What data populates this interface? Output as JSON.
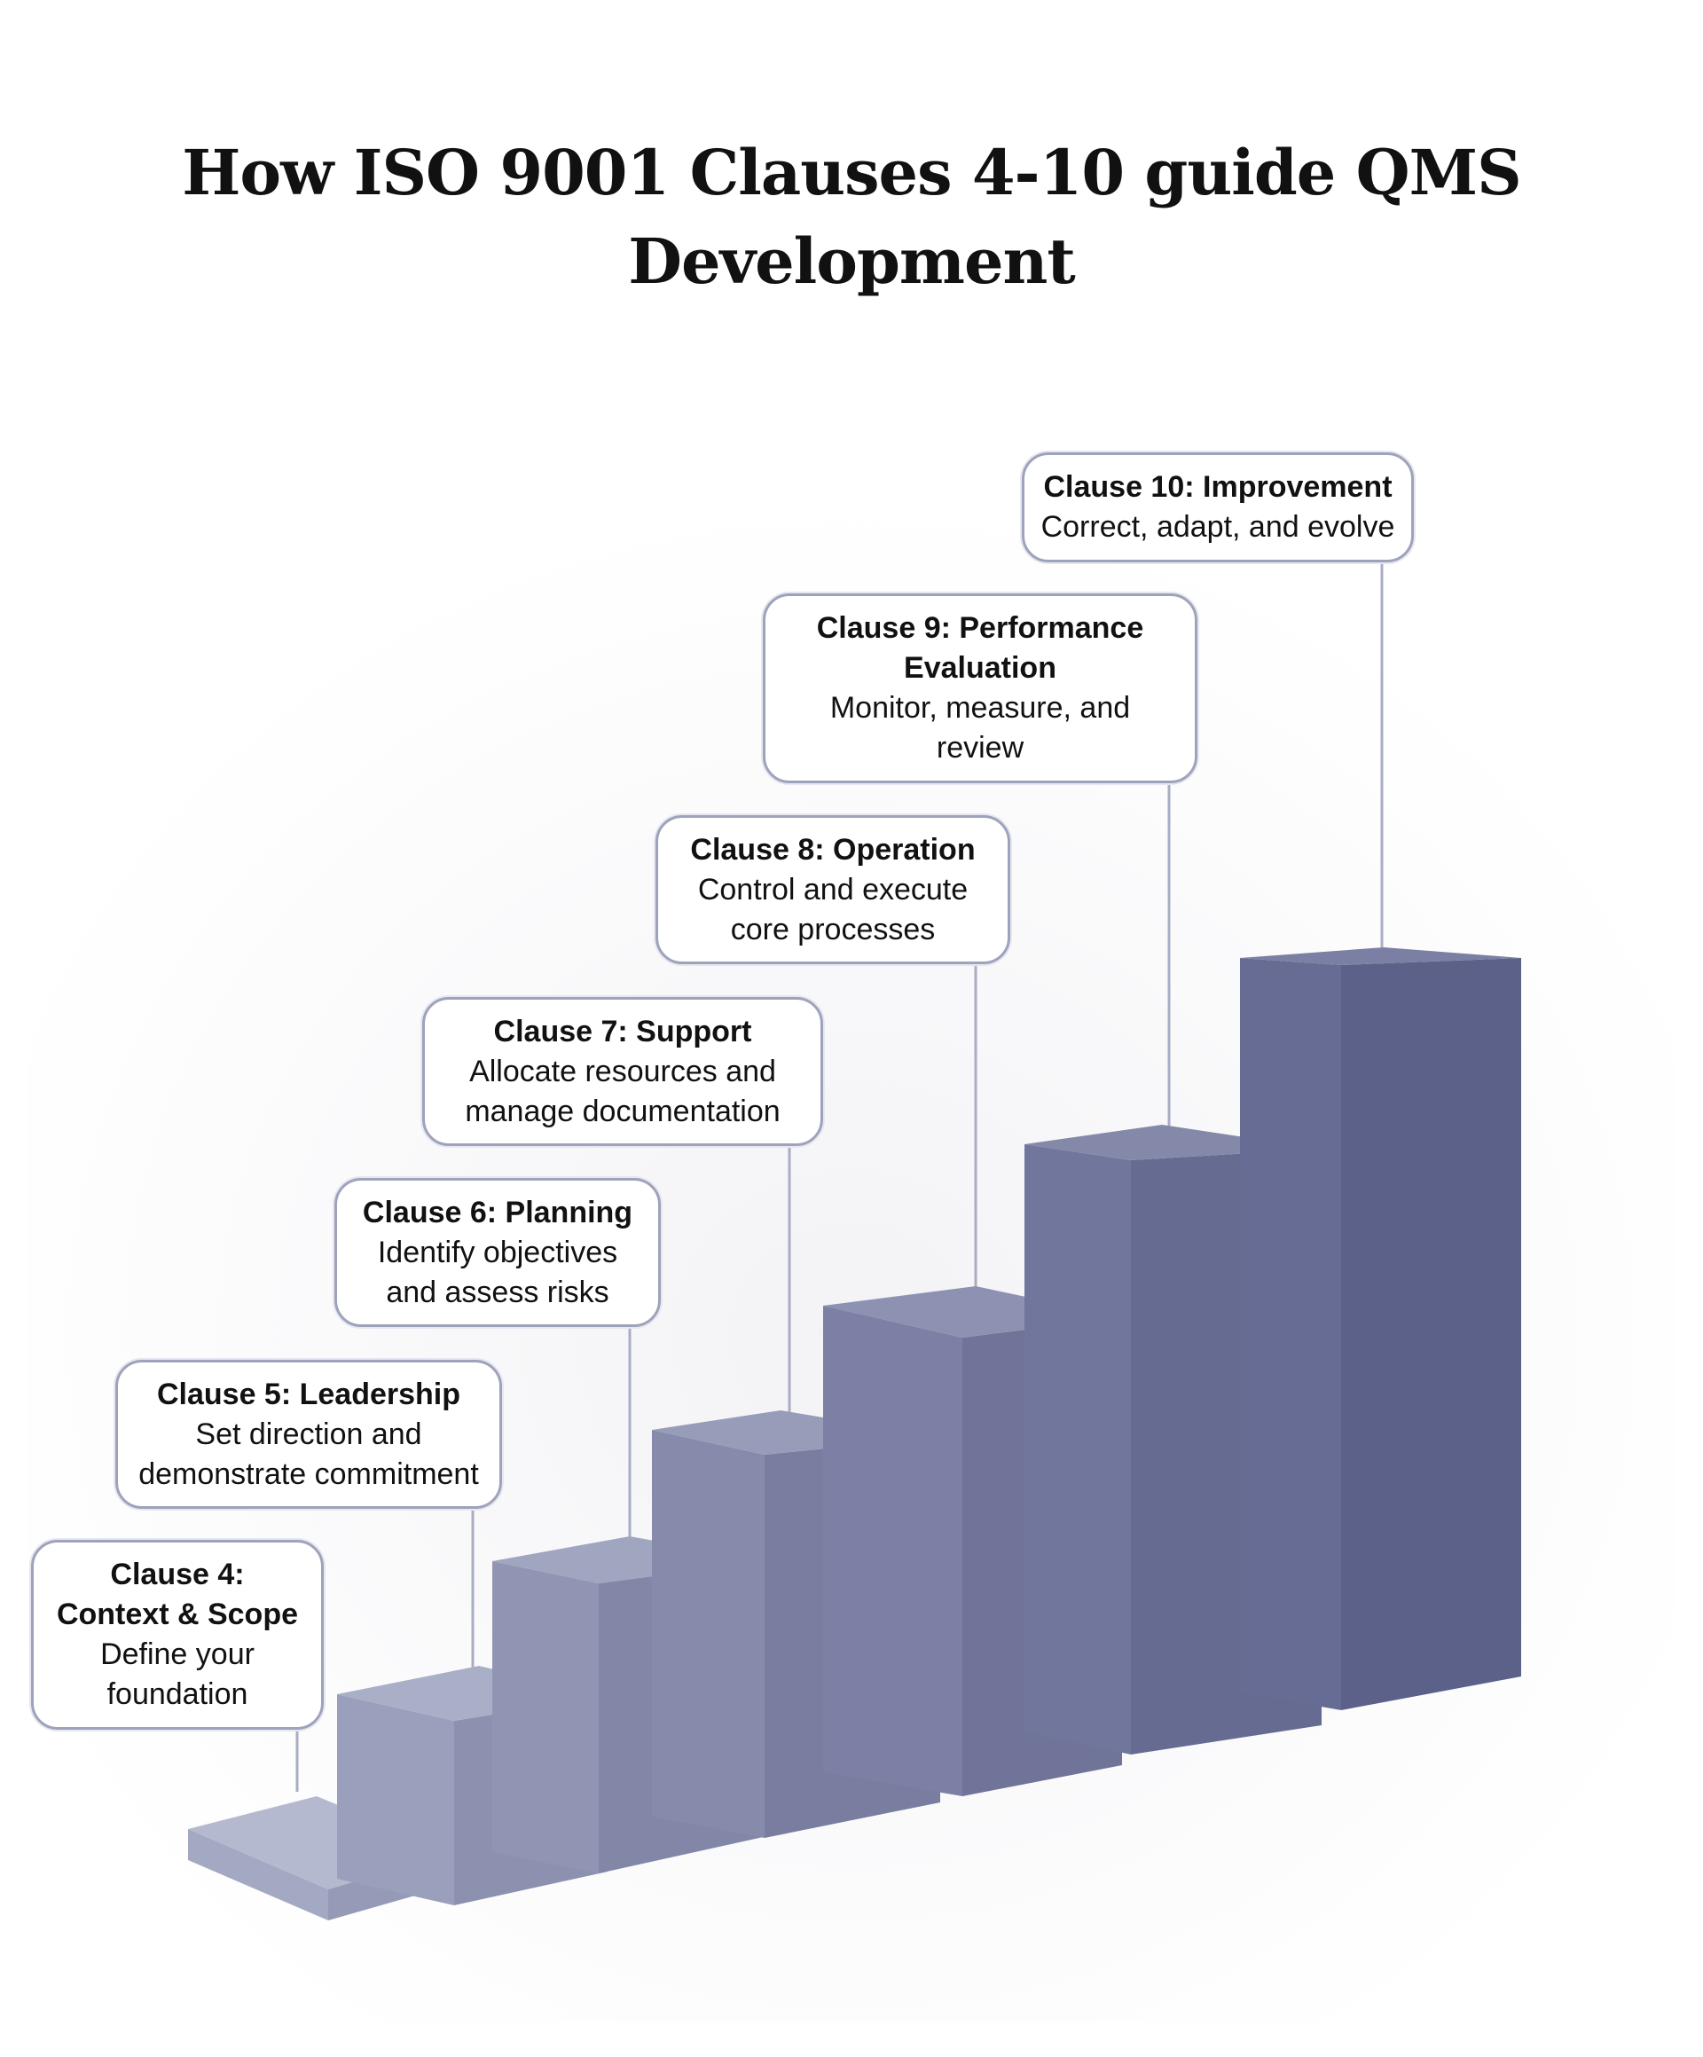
{
  "title": {
    "line1": "How ISO 9001 Clauses 4-10 guide QMS",
    "line2": "Development"
  },
  "colors": {
    "background": "#ffffff",
    "block_top_light": "#b4b9cf",
    "block_front_light": "#a4a9c3",
    "block_side_light": "#959ab6",
    "block_top_dark": "#7a7fa3",
    "block_front_dark": "#676c94",
    "block_side_dark": "#5c6189",
    "callout_border": "#9ea2bb",
    "leader_line": "#a9adc4"
  },
  "steps": [
    {
      "clause": "Clause 4:\nContext & Scope",
      "description": "Define your\nfoundation",
      "level": 1
    },
    {
      "clause": "Clause 5: Leadership",
      "description": "Set direction and\ndemonstrate commitment",
      "level": 2
    },
    {
      "clause": "Clause 6: Planning",
      "description": "Identify objectives\nand assess risks",
      "level": 3
    },
    {
      "clause": "Clause 7: Support",
      "description": "Allocate resources and\nmanage documentation",
      "level": 4
    },
    {
      "clause": "Clause 8: Operation",
      "description": "Control and execute\ncore processes",
      "level": 5
    },
    {
      "clause": "Clause 9: Performance\nEvaluation",
      "description": "Monitor, measure, and\nreview",
      "level": 6
    },
    {
      "clause": "Clause 10: Improvement",
      "description": "Correct, adapt, and evolve",
      "level": 7
    }
  ]
}
